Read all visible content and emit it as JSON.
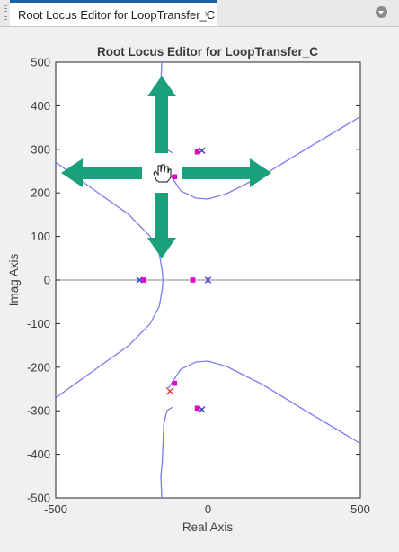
{
  "tab": {
    "label": "Root Locus Editor for LoopTransfer_C",
    "close_glyph": "×",
    "menu_icon": "chevron-down-circle-icon"
  },
  "plot": {
    "title": "Root Locus Editor for LoopTransfer_C",
    "xlabel": "Real Axis",
    "ylabel": "Imag Axis",
    "xlim": [
      -500,
      500
    ],
    "ylim": [
      -500,
      500
    ],
    "xticks": [
      -500,
      0,
      500
    ],
    "yticks": [
      500,
      400,
      300,
      200,
      100,
      0,
      -100,
      -200,
      -300,
      -400,
      -500
    ],
    "colors": {
      "locus": "#7b7bf0",
      "pole": "#3b3bd6",
      "closed_loop_pole": "#e000c8",
      "zero": "#e04040",
      "arrow": "#1aa07a"
    }
  },
  "chart_data": {
    "type": "line",
    "title": "Root Locus Editor for LoopTransfer_C",
    "xlabel": "Real Axis",
    "ylabel": "Imag Axis",
    "xlim": [
      -500,
      500
    ],
    "ylim": [
      -500,
      500
    ],
    "grid": false,
    "series": [
      {
        "points": [
          [
            -500,
            -270
          ],
          [
            -380,
            -210
          ],
          [
            -260,
            -150
          ],
          [
            -190,
            -100
          ],
          [
            -160,
            -60
          ],
          [
            -150,
            -20
          ],
          [
            -148,
            0
          ],
          [
            -150,
            20
          ],
          [
            -160,
            60
          ],
          [
            -190,
            100
          ],
          [
            -260,
            150
          ],
          [
            -380,
            210
          ],
          [
            -500,
            270
          ]
        ]
      },
      {
        "points": [
          [
            -150,
            415
          ],
          [
            -145,
            330
          ],
          [
            -135,
            300
          ],
          [
            -118,
            292
          ]
        ]
      },
      {
        "points": [
          [
            -150,
            -415
          ],
          [
            -145,
            -330
          ],
          [
            -135,
            -300
          ],
          [
            -118,
            -292
          ]
        ]
      },
      {
        "points": [
          [
            -130,
            248
          ],
          [
            -90,
            205
          ],
          [
            -40,
            188
          ],
          [
            0,
            186
          ],
          [
            60,
            198
          ],
          [
            180,
            240
          ],
          [
            320,
            300
          ],
          [
            500,
            375
          ]
        ]
      },
      {
        "points": [
          [
            -130,
            -248
          ],
          [
            -90,
            -205
          ],
          [
            -40,
            -188
          ],
          [
            0,
            -186
          ],
          [
            60,
            -198
          ],
          [
            180,
            -240
          ],
          [
            320,
            -300
          ],
          [
            500,
            -375
          ]
        ]
      },
      {
        "points": [
          [
            -150,
            -415
          ],
          [
            -155,
            -450
          ],
          [
            -152,
            -500
          ]
        ]
      },
      {
        "points": [
          [
            -150,
            415
          ],
          [
            -155,
            450
          ],
          [
            -152,
            500
          ]
        ]
      }
    ],
    "open_loop_poles": [
      [
        -20,
        297
      ],
      [
        -20,
        -297
      ],
      [
        -225,
        0
      ],
      [
        0,
        0
      ]
    ],
    "closed_loop_poles": [
      [
        -35,
        294
      ],
      [
        -35,
        -294
      ],
      [
        -110,
        237
      ],
      [
        -110,
        -237
      ],
      [
        -210,
        0
      ],
      [
        -50,
        0
      ]
    ],
    "zeros": [
      [
        -125,
        -255
      ]
    ]
  },
  "overlay": {
    "pan_icon": "hand-pan-icon",
    "arrows": [
      "arrow-up-icon",
      "arrow-down-icon",
      "arrow-left-icon",
      "arrow-right-icon"
    ]
  }
}
